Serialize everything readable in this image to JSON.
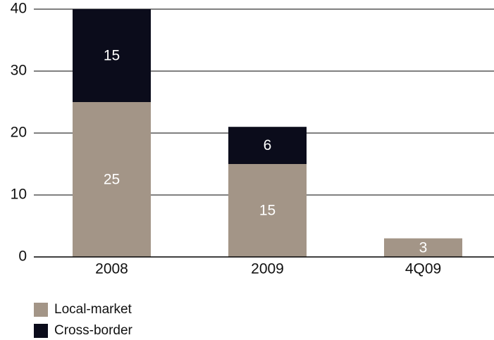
{
  "chart_data": {
    "type": "stacked_bar",
    "categories": [
      "2008",
      "2009",
      "4Q09"
    ],
    "series": [
      {
        "name": "Local-market",
        "color": "#a39587",
        "values": [
          25,
          15,
          3
        ]
      },
      {
        "name": "Cross-border",
        "color": "#0b0c1b",
        "values": [
          15,
          6,
          null
        ]
      }
    ],
    "ylim": [
      0,
      40
    ],
    "yticks": [
      0,
      10,
      20,
      30,
      40
    ],
    "grid": true
  }
}
